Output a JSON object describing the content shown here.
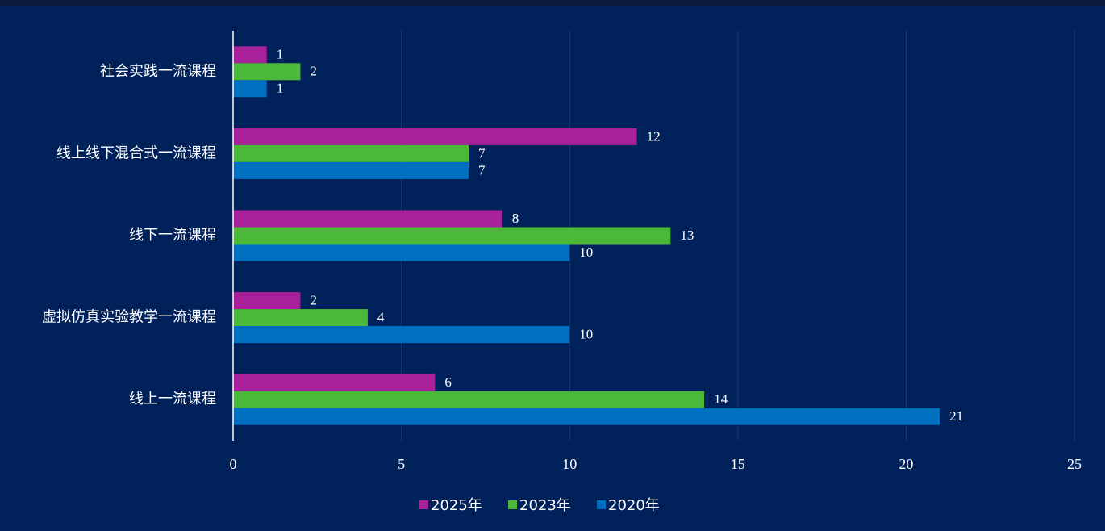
{
  "chart_data": {
    "type": "bar",
    "orientation": "horizontal",
    "categories": [
      "社会实践一流课程",
      "线上线下混合式一流课程",
      "线下一流课程",
      "虚拟仿真实验教学一流课程",
      "线上一流课程"
    ],
    "series": [
      {
        "name": "2025年",
        "color": "#a8209a",
        "values": [
          1,
          12,
          8,
          2,
          6
        ]
      },
      {
        "name": "2023年",
        "color": "#4cb83a",
        "values": [
          2,
          7,
          13,
          4,
          14
        ]
      },
      {
        "name": "2020年",
        "color": "#0070c0",
        "values": [
          1,
          7,
          10,
          10,
          21
        ]
      }
    ],
    "xlim": [
      0,
      25
    ],
    "xticks": [
      0,
      5,
      10,
      15,
      20,
      25
    ],
    "grid": true,
    "legend": "bottom"
  }
}
